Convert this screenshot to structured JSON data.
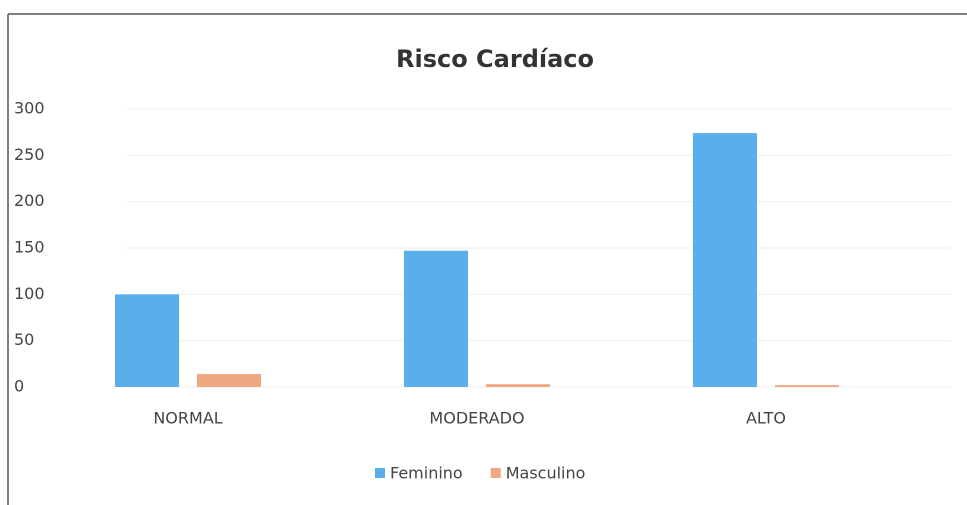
{
  "chart_data": {
    "type": "bar",
    "title": "Risco Cardíaco",
    "categories": [
      "NORMAL",
      "MODERADO",
      "ALTO"
    ],
    "series": [
      {
        "name": "Feminino",
        "color": "#5aafea",
        "values": [
          100,
          147,
          274
        ]
      },
      {
        "name": "Masculino",
        "color": "#f0a882",
        "values": [
          14,
          3,
          2
        ]
      }
    ],
    "ylim": [
      0,
      300
    ],
    "yticks": [
      0,
      50,
      100,
      150,
      200,
      250,
      300
    ],
    "grid": true,
    "legend": "bottom"
  }
}
